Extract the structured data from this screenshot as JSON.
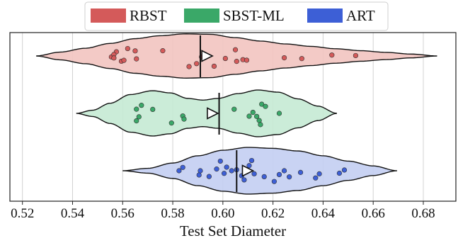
{
  "chart_data": {
    "type": "violin",
    "xlabel": "Test Set Diameter",
    "xlim": [
      0.515,
      0.693
    ],
    "xticks": [
      "0.52",
      "0.54",
      "0.56",
      "0.58",
      "0.60",
      "0.62",
      "0.64",
      "0.66",
      "0.68"
    ],
    "grid": "vertical",
    "legend_position": "top-center",
    "series": [
      {
        "name": "RBST",
        "color": "#d45a5a",
        "fill": "#f2c4c0",
        "range": [
          0.5255,
          0.6855
        ],
        "median": 0.591,
        "mean": 0.5933,
        "profile": [
          [
            0.5255,
            0.0
          ],
          [
            0.535,
            0.16
          ],
          [
            0.545,
            0.32
          ],
          [
            0.555,
            0.52
          ],
          [
            0.565,
            0.72
          ],
          [
            0.575,
            0.84
          ],
          [
            0.585,
            0.92
          ],
          [
            0.595,
            0.9
          ],
          [
            0.605,
            0.76
          ],
          [
            0.615,
            0.62
          ],
          [
            0.625,
            0.5
          ],
          [
            0.635,
            0.4
          ],
          [
            0.645,
            0.3
          ],
          [
            0.655,
            0.22
          ],
          [
            0.665,
            0.15
          ],
          [
            0.675,
            0.08
          ],
          [
            0.6855,
            0.0
          ]
        ],
        "points": [
          [
            0.5555,
            0.1
          ],
          [
            0.5575,
            -0.4
          ],
          [
            0.5565,
            -0.15
          ],
          [
            0.5565,
            0.2
          ],
          [
            0.5595,
            0.45
          ],
          [
            0.5605,
            0.35
          ],
          [
            0.562,
            -0.55
          ],
          [
            0.5655,
            0.2
          ],
          [
            0.565,
            -0.35
          ],
          [
            0.576,
            -0.3
          ],
          [
            0.5865,
            0.55
          ],
          [
            0.5895,
            0.4
          ],
          [
            0.5915,
            0.05
          ],
          [
            0.5965,
            0.55
          ],
          [
            0.601,
            0.15
          ],
          [
            0.605,
            -0.4
          ],
          [
            0.6055,
            0.35
          ],
          [
            0.608,
            0.25
          ],
          [
            0.6095,
            0.3
          ],
          [
            0.6245,
            0.2
          ],
          [
            0.6315,
            0.35
          ],
          [
            0.6435,
            -0.2
          ],
          [
            0.653,
            -0.15
          ]
        ]
      },
      {
        "name": "SBST-ML",
        "color": "#3aa868",
        "fill": "#c5ead4",
        "range": [
          0.5415,
          0.6455
        ],
        "median": 0.5985,
        "mean": 0.5955,
        "profile": [
          [
            0.5415,
            0.0
          ],
          [
            0.548,
            0.13
          ],
          [
            0.555,
            0.42
          ],
          [
            0.563,
            0.78
          ],
          [
            0.572,
            0.94
          ],
          [
            0.579,
            0.85
          ],
          [
            0.586,
            0.62
          ],
          [
            0.592,
            0.55
          ],
          [
            0.598,
            0.62
          ],
          [
            0.606,
            0.82
          ],
          [
            0.614,
            0.97
          ],
          [
            0.622,
            0.88
          ],
          [
            0.63,
            0.6
          ],
          [
            0.638,
            0.3
          ],
          [
            0.6455,
            0.0
          ]
        ],
        "points": [
          [
            0.5655,
            0.45
          ],
          [
            0.5665,
            0.2
          ],
          [
            0.5655,
            -0.25
          ],
          [
            0.5675,
            -0.45
          ],
          [
            0.572,
            -0.2
          ],
          [
            0.5795,
            0.55
          ],
          [
            0.584,
            0.2
          ],
          [
            0.5845,
            0.45
          ],
          [
            0.6045,
            -0.25
          ],
          [
            0.6105,
            0.15
          ],
          [
            0.612,
            -0.05
          ],
          [
            0.6135,
            0.15
          ],
          [
            0.6145,
            0.35
          ],
          [
            0.615,
            0.55
          ],
          [
            0.6155,
            -0.45
          ],
          [
            0.617,
            -0.35
          ],
          [
            0.6225,
            0.0
          ]
        ]
      },
      {
        "name": "ART",
        "color": "#3d5fd6",
        "fill": "#c3cef2",
        "range": [
          0.56,
          0.6695
        ],
        "median": 0.6055,
        "mean": 0.6095,
        "profile": [
          [
            0.56,
            0.0
          ],
          [
            0.57,
            0.1
          ],
          [
            0.58,
            0.32
          ],
          [
            0.59,
            0.62
          ],
          [
            0.6,
            0.85
          ],
          [
            0.61,
            0.97
          ],
          [
            0.62,
            0.93
          ],
          [
            0.63,
            0.82
          ],
          [
            0.64,
            0.62
          ],
          [
            0.65,
            0.4
          ],
          [
            0.66,
            0.2
          ],
          [
            0.6695,
            0.0
          ]
        ],
        "points": [
          [
            0.5825,
            0.0
          ],
          [
            0.584,
            -0.45
          ],
          [
            0.5905,
            0.35
          ],
          [
            0.591,
            0.0
          ],
          [
            0.5945,
            0.4
          ],
          [
            0.5975,
            -0.1
          ],
          [
            0.599,
            -0.55
          ],
          [
            0.6005,
            0.15
          ],
          [
            0.6015,
            -0.2
          ],
          [
            0.6035,
            0.0
          ],
          [
            0.6055,
            -0.05
          ],
          [
            0.6075,
            0.25
          ],
          [
            0.6085,
            0.45
          ],
          [
            0.6105,
            -0.25
          ],
          [
            0.6115,
            -0.5
          ],
          [
            0.6125,
            0.15
          ],
          [
            0.6165,
            0.3
          ],
          [
            0.6205,
            0.55
          ],
          [
            0.6225,
            0.2
          ],
          [
            0.6245,
            0.0
          ],
          [
            0.6265,
            0.35
          ],
          [
            0.631,
            0.1
          ],
          [
            0.637,
            0.55
          ],
          [
            0.6385,
            0.25
          ],
          [
            0.6465,
            0.3
          ],
          [
            0.6485,
            -0.1
          ]
        ]
      }
    ]
  }
}
